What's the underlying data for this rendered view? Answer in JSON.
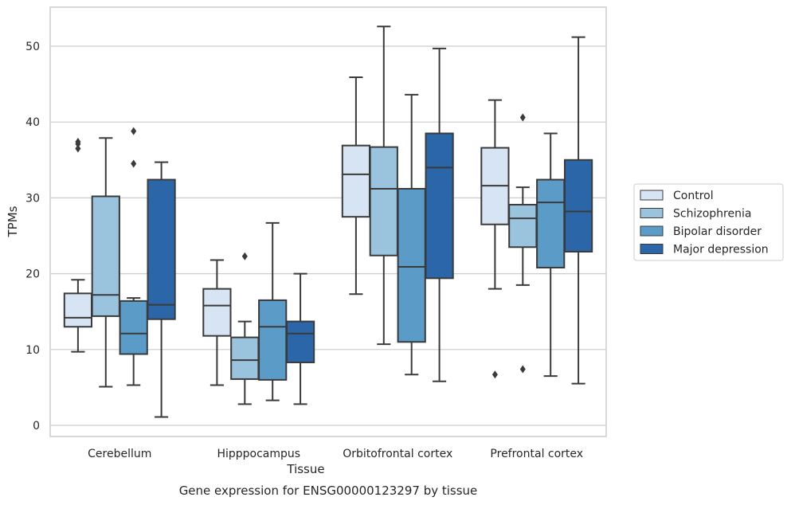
{
  "caption": "Gene expression for ENSG00000123297 by tissue",
  "chart_data": {
    "type": "box",
    "xlabel": "Tissue",
    "ylabel": "TPMs",
    "ylim": [
      -1.5,
      55
    ],
    "yticks": [
      0,
      10,
      20,
      30,
      40,
      50
    ],
    "grid": "horizontal",
    "legend_position": "right",
    "categories": [
      "Cerebellum",
      "Hipppocampus",
      "Orbitofrontal cortex",
      "Prefrontal cortex"
    ],
    "series": [
      {
        "name": "Control",
        "color": "#d6e4f3",
        "boxes": [
          {
            "whislo": 9.7,
            "q1": 13.0,
            "med": 14.2,
            "q3": 17.4,
            "whishi": 19.2,
            "fliers": [
              36.5,
              37.1,
              37.4
            ]
          },
          {
            "whislo": 5.3,
            "q1": 11.8,
            "med": 15.8,
            "q3": 18.0,
            "whishi": 21.8,
            "fliers": []
          },
          {
            "whislo": 17.3,
            "q1": 27.5,
            "med": 33.1,
            "q3": 36.9,
            "whishi": 45.9,
            "fliers": []
          },
          {
            "whislo": 18.0,
            "q1": 26.5,
            "med": 31.6,
            "q3": 36.6,
            "whishi": 42.9,
            "fliers": [
              6.7
            ]
          }
        ]
      },
      {
        "name": "Schizophrenia",
        "color": "#9ac4de",
        "boxes": [
          {
            "whislo": 5.1,
            "q1": 14.4,
            "med": 17.2,
            "q3": 30.2,
            "whishi": 37.9,
            "fliers": []
          },
          {
            "whislo": 2.8,
            "q1": 6.1,
            "med": 8.6,
            "q3": 11.6,
            "whishi": 13.7,
            "fliers": [
              22.3
            ]
          },
          {
            "whislo": 10.7,
            "q1": 22.4,
            "med": 31.2,
            "q3": 36.7,
            "whishi": 52.6,
            "fliers": []
          },
          {
            "whislo": 18.5,
            "q1": 23.5,
            "med": 27.3,
            "q3": 29.1,
            "whishi": 31.4,
            "fliers": [
              7.4,
              40.6
            ]
          }
        ]
      },
      {
        "name": "Bipolar disorder",
        "color": "#5b9bc8",
        "boxes": [
          {
            "whislo": 5.3,
            "q1": 9.4,
            "med": 12.1,
            "q3": 16.4,
            "whishi": 16.8,
            "fliers": [
              34.5,
              38.8
            ]
          },
          {
            "whislo": 3.3,
            "q1": 6.0,
            "med": 13.0,
            "q3": 16.5,
            "whishi": 26.7,
            "fliers": []
          },
          {
            "whislo": 6.7,
            "q1": 11.0,
            "med": 20.9,
            "q3": 31.2,
            "whishi": 43.6,
            "fliers": []
          },
          {
            "whislo": 6.5,
            "q1": 20.8,
            "med": 29.4,
            "q3": 32.4,
            "whishi": 38.5,
            "fliers": []
          }
        ]
      },
      {
        "name": "Major depression",
        "color": "#2a66a8",
        "boxes": [
          {
            "whislo": 1.1,
            "q1": 14.0,
            "med": 15.9,
            "q3": 32.4,
            "whishi": 34.7,
            "fliers": []
          },
          {
            "whislo": 2.8,
            "q1": 8.3,
            "med": 12.1,
            "q3": 13.7,
            "whishi": 20.0,
            "fliers": []
          },
          {
            "whislo": 5.8,
            "q1": 19.4,
            "med": 34.0,
            "q3": 38.5,
            "whishi": 49.7,
            "fliers": []
          },
          {
            "whislo": 5.5,
            "q1": 22.9,
            "med": 28.2,
            "q3": 35.0,
            "whishi": 51.2,
            "fliers": []
          }
        ]
      }
    ]
  }
}
